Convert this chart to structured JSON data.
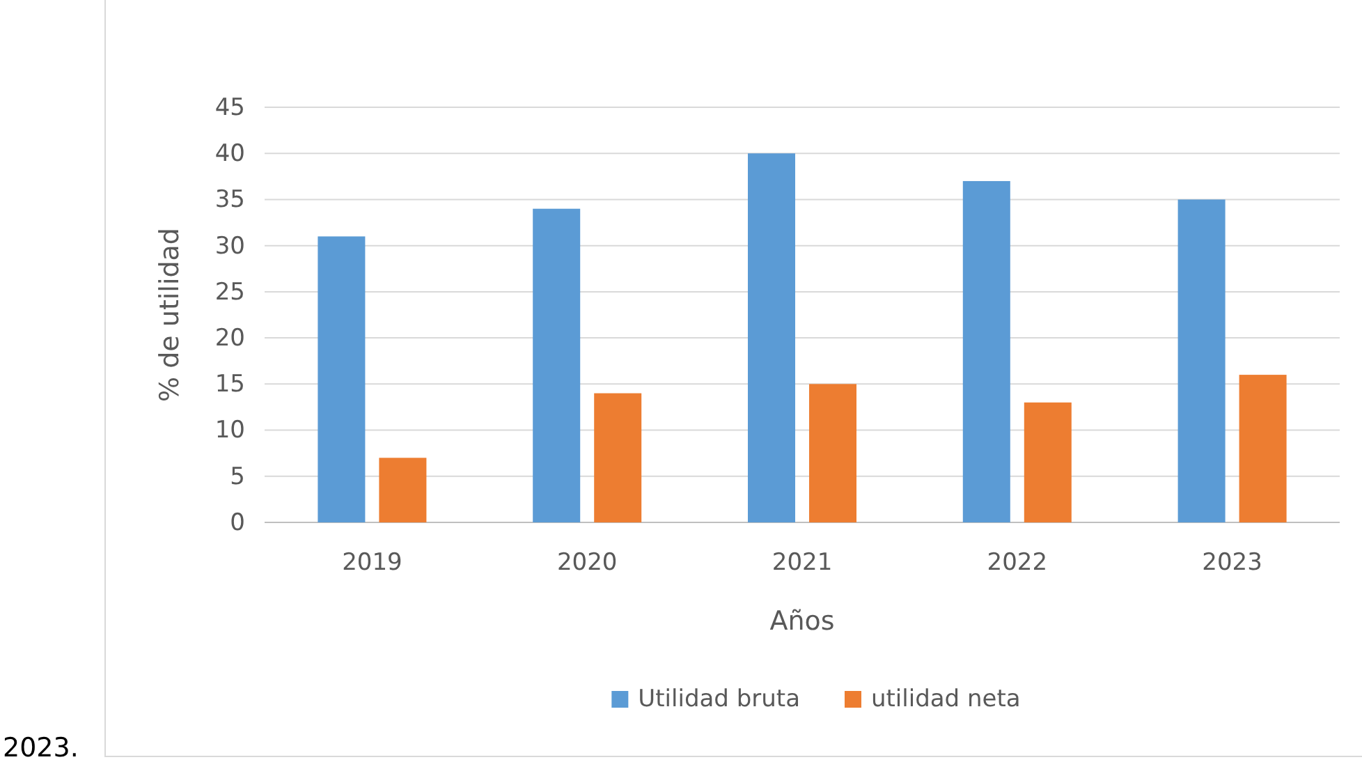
{
  "chart_data": {
    "type": "bar",
    "xlabel": "Años",
    "ylabel": "% de utilidad",
    "categories": [
      "2019",
      "2020",
      "2021",
      "2022",
      "2023"
    ],
    "series": [
      {
        "name": "Utilidad bruta",
        "color": "#5b9bd5",
        "values": [
          31,
          34,
          40,
          37,
          35
        ]
      },
      {
        "name": "utilidad neta",
        "color": "#ed7d31",
        "values": [
          7,
          14,
          15,
          13,
          16
        ]
      }
    ],
    "ylim": [
      0,
      45
    ],
    "yticks": [
      0,
      5,
      10,
      15,
      20,
      25,
      30,
      35,
      40,
      45
    ],
    "grid": "y",
    "legend": "bottom",
    "annotations": [
      "2023."
    ]
  }
}
